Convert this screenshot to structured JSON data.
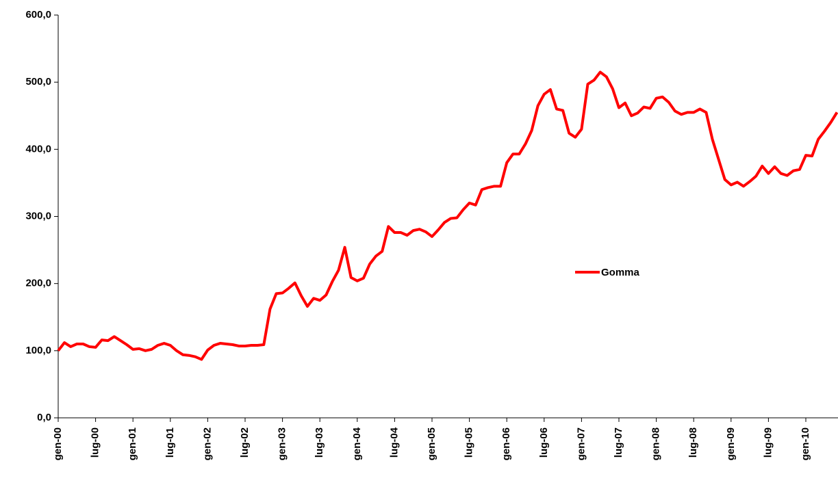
{
  "chart_data": {
    "type": "line",
    "categories": [
      "gen-00",
      null,
      null,
      null,
      null,
      null,
      "lug-00",
      null,
      null,
      null,
      null,
      null,
      "gen-01",
      null,
      null,
      null,
      null,
      null,
      "lug-01",
      null,
      null,
      null,
      null,
      null,
      "gen-02",
      null,
      null,
      null,
      null,
      null,
      "lug-02",
      null,
      null,
      null,
      null,
      null,
      "gen-03",
      null,
      null,
      null,
      null,
      null,
      "lug-03",
      null,
      null,
      null,
      null,
      null,
      "gen-04",
      null,
      null,
      null,
      null,
      null,
      "lug-04",
      null,
      null,
      null,
      null,
      null,
      "gen-05",
      null,
      null,
      null,
      null,
      null,
      "lug-05",
      null,
      null,
      null,
      null,
      null,
      "gen-06",
      null,
      null,
      null,
      null,
      null,
      "lug-06",
      null,
      null,
      null,
      null,
      null,
      "gen-07",
      null,
      null,
      null,
      null,
      null,
      "lug-07",
      null,
      null,
      null,
      null,
      null,
      "gen-08",
      null,
      null,
      null,
      null,
      null,
      "lug-08",
      null,
      null,
      null,
      null,
      null,
      "gen-09",
      null,
      null,
      null,
      null,
      null,
      "lug-09",
      null,
      null,
      null,
      null,
      null,
      "gen-10",
      null,
      null,
      null,
      null,
      null
    ],
    "series": [
      {
        "name": "Gomma",
        "color": "#ff0000",
        "values": [
          100,
          112,
          106,
          110,
          110,
          106,
          105,
          116,
          115,
          121,
          115,
          109,
          102,
          103,
          100,
          102,
          108,
          111,
          108,
          100,
          94,
          93,
          91,
          87,
          101,
          108,
          111,
          110,
          109,
          107,
          107,
          108,
          108,
          109,
          162,
          185,
          186,
          193,
          201,
          182,
          166,
          178,
          175,
          183,
          203,
          220,
          254,
          209,
          204,
          208,
          229,
          241,
          248,
          285,
          276,
          276,
          272,
          279,
          281,
          277,
          270,
          280,
          291,
          297,
          298,
          310,
          320,
          317,
          340,
          343,
          345,
          345,
          380,
          393,
          393,
          408,
          428,
          465,
          482,
          489,
          460,
          458,
          424,
          418,
          430,
          497,
          503,
          515,
          508,
          490,
          462,
          469,
          450,
          454,
          463,
          461,
          476,
          478,
          470,
          457,
          452,
          455,
          455,
          460,
          455,
          415,
          385,
          355,
          347,
          351,
          345,
          352,
          360,
          375,
          364,
          374,
          364,
          361,
          368,
          370,
          391,
          390,
          415,
          427,
          440,
          455
        ]
      }
    ],
    "ylim": [
      0,
      600
    ],
    "yticks": [
      {
        "value": 0,
        "label": "0,0"
      },
      {
        "value": 100,
        "label": "100,0"
      },
      {
        "value": 200,
        "label": "200,0"
      },
      {
        "value": 300,
        "label": "300,0"
      },
      {
        "value": 400,
        "label": "400,0"
      },
      {
        "value": 500,
        "label": "500,0"
      },
      {
        "value": 600,
        "label": "600,0"
      }
    ],
    "legend": "center"
  }
}
